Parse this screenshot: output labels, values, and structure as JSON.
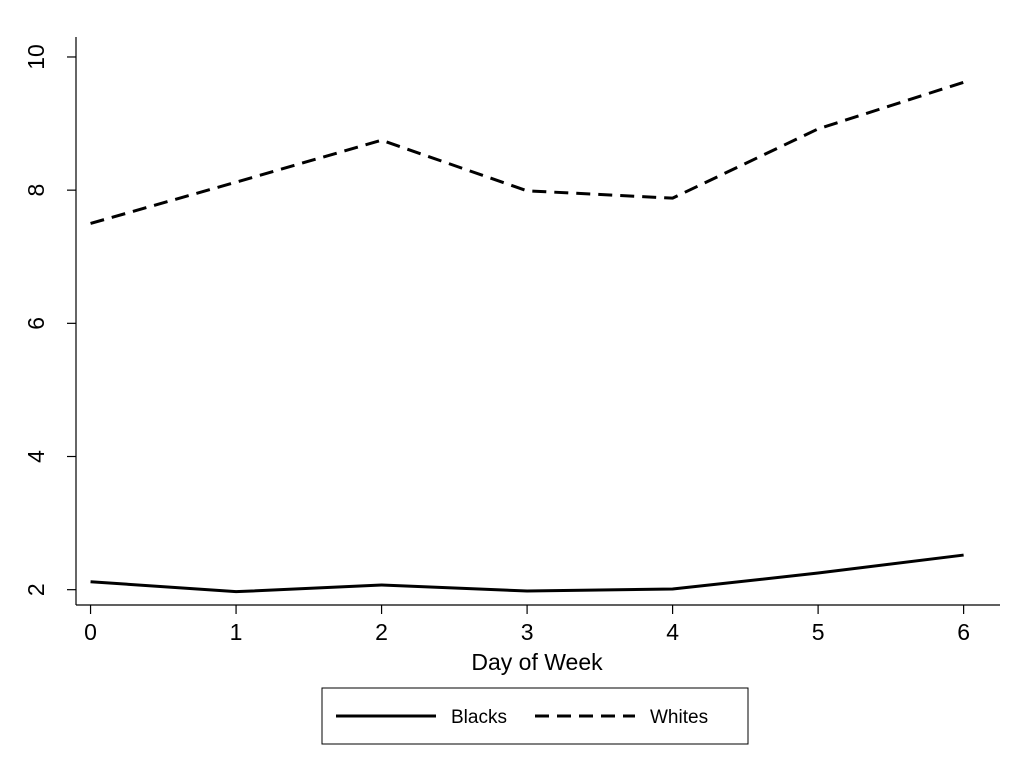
{
  "chart_data": {
    "type": "line",
    "title": "",
    "xlabel": "Day of Week",
    "ylabel": "",
    "x": [
      0,
      1,
      2,
      3,
      4,
      5,
      6
    ],
    "xticks": [
      0,
      1,
      2,
      3,
      4,
      5,
      6
    ],
    "yticks": [
      2,
      4,
      6,
      8,
      10
    ],
    "xlim": [
      -0.1,
      6.25
    ],
    "ylim": [
      1.77,
      10.3
    ],
    "grid": false,
    "legend": "bottom-center",
    "series": [
      {
        "name": "Blacks",
        "style": "solid",
        "color": "#000000",
        "values": [
          2.12,
          1.97,
          2.07,
          1.98,
          2.01,
          2.25,
          2.52
        ]
      },
      {
        "name": "Whites",
        "style": "dashed",
        "color": "#000000",
        "values": [
          7.5,
          8.12,
          8.75,
          7.99,
          7.88,
          8.92,
          9.62
        ]
      }
    ]
  }
}
